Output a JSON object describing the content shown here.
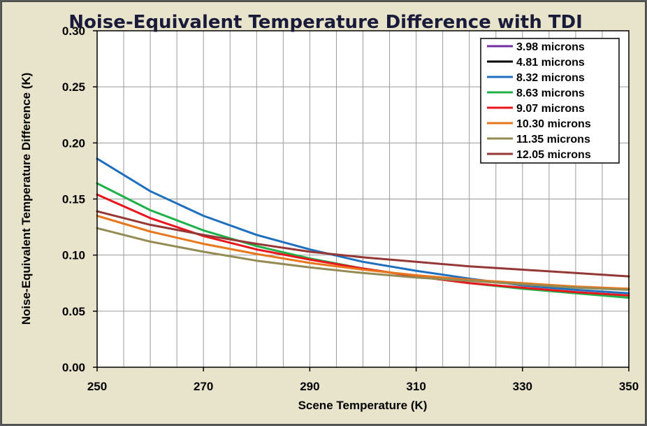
{
  "chart_data": {
    "type": "line",
    "title": "Noise-Equivalent Temperature Difference with TDI",
    "xlabel": "Scene Temperature  (K)",
    "ylabel": "Noise-Equivalent  Temperature Difference  (K)",
    "xlim": [
      250,
      350
    ],
    "ylim": [
      0,
      0.3
    ],
    "x_ticks": [
      "250",
      "270",
      "290",
      "310",
      "330",
      "350"
    ],
    "y_ticks": [
      "0.00",
      "0.05",
      "0.10",
      "0.15",
      "0.20",
      "0.25",
      "0.30"
    ],
    "grid": true,
    "legend_position": "top-right",
    "x": [
      250,
      260,
      270,
      280,
      290,
      300,
      310,
      320,
      330,
      340,
      350
    ],
    "series": [
      {
        "name": "3.98 microns",
        "color": "#7030a0",
        "values": [
          null,
          null,
          null,
          null,
          null,
          null,
          null,
          null,
          null,
          null,
          null
        ]
      },
      {
        "name": "4.81 microns",
        "color": "#000000",
        "values": [
          null,
          null,
          null,
          null,
          null,
          null,
          null,
          null,
          null,
          null,
          null
        ]
      },
      {
        "name": "8.32 microns",
        "color": "#1f6fbf",
        "values": [
          0.186,
          0.157,
          0.135,
          0.118,
          0.105,
          0.094,
          0.086,
          0.079,
          0.073,
          0.069,
          0.066
        ]
      },
      {
        "name": "8.63 microns",
        "color": "#1fb04a",
        "values": [
          0.164,
          0.14,
          0.122,
          0.108,
          0.097,
          0.088,
          0.081,
          0.075,
          0.07,
          0.066,
          0.062
        ]
      },
      {
        "name": "9.07 microns",
        "color": "#e8161c",
        "values": [
          0.154,
          0.133,
          0.117,
          0.105,
          0.096,
          0.088,
          0.081,
          0.075,
          0.071,
          0.067,
          0.064
        ]
      },
      {
        "name": "10.30 microns",
        "color": "#e8761c",
        "values": [
          0.135,
          0.121,
          0.11,
          0.101,
          0.093,
          0.087,
          0.082,
          0.078,
          0.075,
          0.072,
          0.07
        ]
      },
      {
        "name": "11.35 microns",
        "color": "#948a54",
        "values": [
          0.124,
          0.112,
          0.103,
          0.095,
          0.089,
          0.084,
          0.08,
          0.077,
          0.074,
          0.071,
          0.069
        ]
      },
      {
        "name": "12.05 microns",
        "color": "#953735",
        "values": [
          0.139,
          0.127,
          0.118,
          0.11,
          0.103,
          0.098,
          0.094,
          0.09,
          0.087,
          0.084,
          0.081
        ]
      }
    ]
  }
}
